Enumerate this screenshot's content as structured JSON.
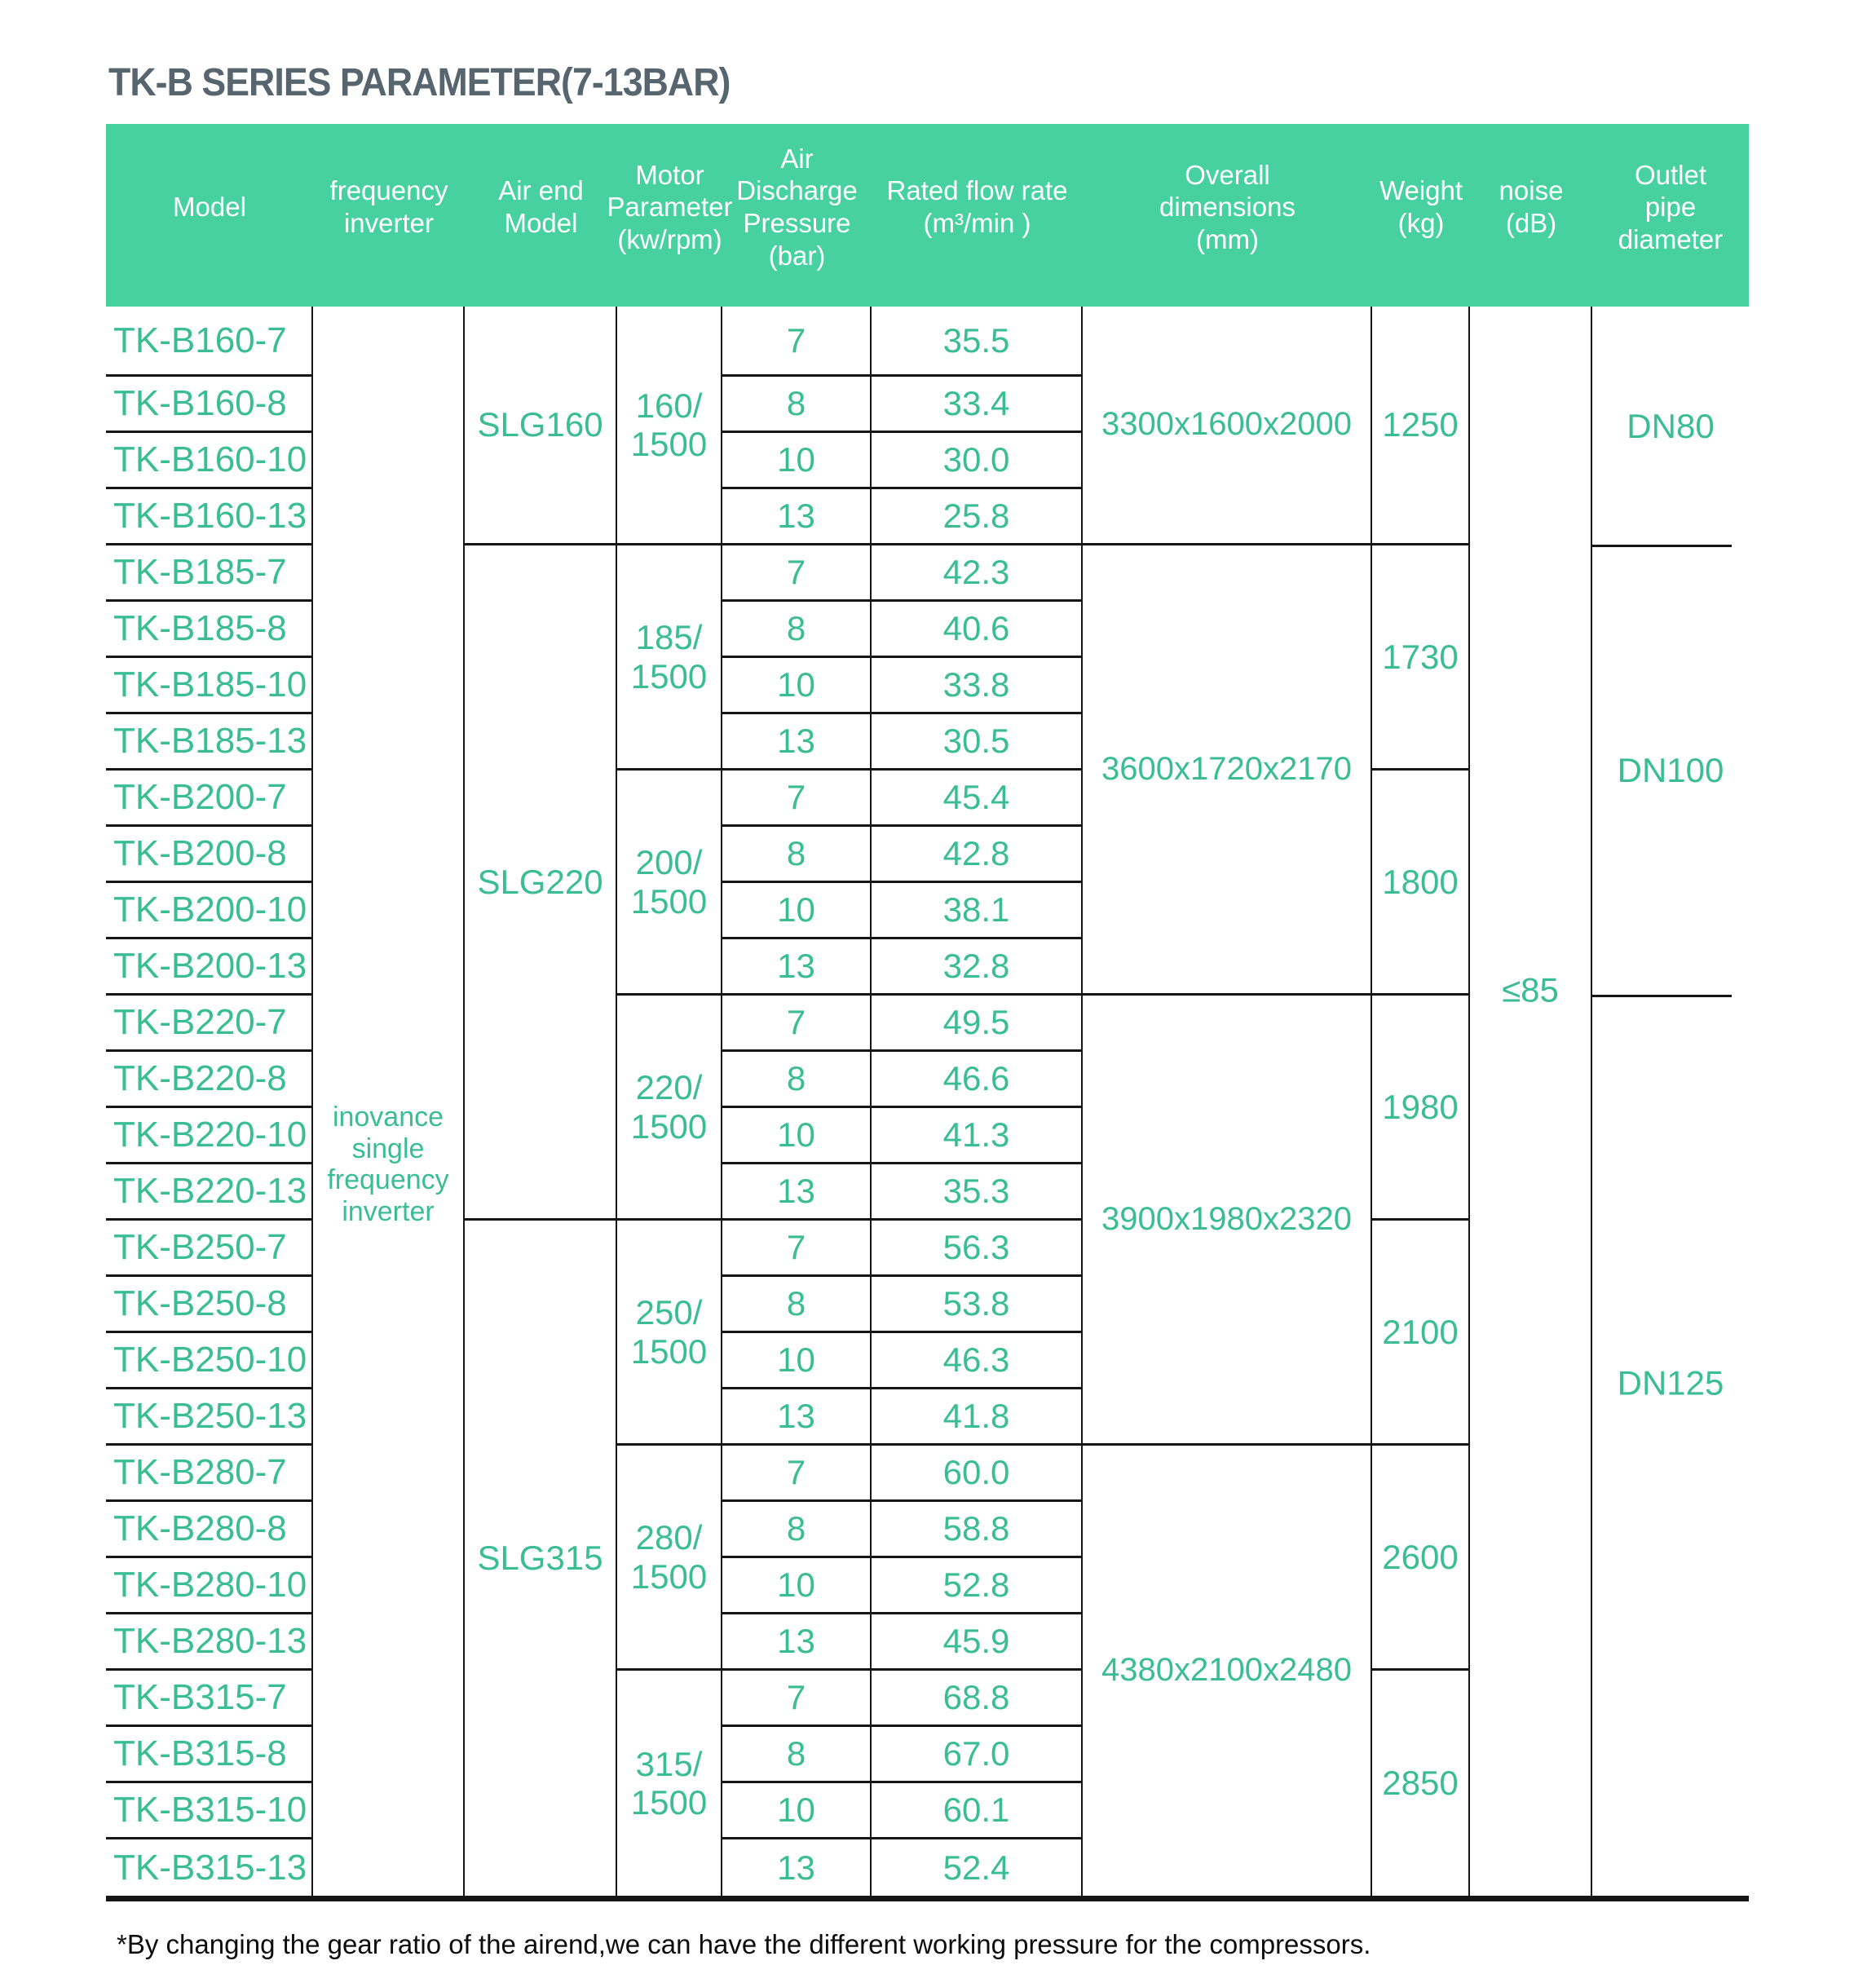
{
  "title": "TK-B SERIES PARAMETER(7-13BAR)",
  "footnote": "*By changing the gear ratio of the airend,we can have the different working pressure for the compressors.",
  "colors": {
    "header_bg": "#47d1a1",
    "header_text": "#ffffff",
    "data_text": "#3bbd94",
    "title_text": "#57656e",
    "border": "#161616",
    "footnote_text": "#0d0d0d"
  },
  "table": {
    "columns": [
      {
        "id": "model",
        "header_lines": [
          "Model"
        ]
      },
      {
        "id": "frequency_inverter",
        "header_lines": [
          "frequency",
          "inverter"
        ]
      },
      {
        "id": "air_end_model",
        "header_lines": [
          "Air end",
          "Model"
        ]
      },
      {
        "id": "motor_parameter",
        "header_lines": [
          "Motor",
          "Parameter",
          "(kw/rpm)"
        ]
      },
      {
        "id": "air_discharge_pressure",
        "header_lines": [
          "Air",
          "Discharge",
          "Pressure",
          "(bar)"
        ]
      },
      {
        "id": "rated_flow_rate",
        "header_lines": [
          "Rated flow rate",
          "(m³/min )"
        ]
      },
      {
        "id": "overall_dimensions",
        "header_lines": [
          "Overall",
          "dimensions",
          "(mm)"
        ]
      },
      {
        "id": "weight",
        "header_lines": [
          "Weight",
          "(kg)"
        ]
      },
      {
        "id": "noise",
        "header_lines": [
          "noise",
          "(dB)"
        ]
      },
      {
        "id": "outlet_pipe_diameter",
        "header_lines": [
          "Outlet",
          "pipe",
          "diameter"
        ]
      }
    ],
    "rows": [
      {
        "model": "TK-B160-7",
        "pressure": "7",
        "flow": "35.5"
      },
      {
        "model": "TK-B160-8",
        "pressure": "8",
        "flow": "33.4"
      },
      {
        "model": "TK-B160-10",
        "pressure": "10",
        "flow": "30.0"
      },
      {
        "model": "TK-B160-13",
        "pressure": "13",
        "flow": "25.8"
      },
      {
        "model": "TK-B185-7",
        "pressure": "7",
        "flow": "42.3"
      },
      {
        "model": "TK-B185-8",
        "pressure": "8",
        "flow": "40.6"
      },
      {
        "model": "TK-B185-10",
        "pressure": "10",
        "flow": "33.8"
      },
      {
        "model": "TK-B185-13",
        "pressure": "13",
        "flow": "30.5"
      },
      {
        "model": "TK-B200-7",
        "pressure": "7",
        "flow": "45.4"
      },
      {
        "model": "TK-B200-8",
        "pressure": "8",
        "flow": "42.8"
      },
      {
        "model": "TK-B200-10",
        "pressure": "10",
        "flow": "38.1"
      },
      {
        "model": "TK-B200-13",
        "pressure": "13",
        "flow": "32.8"
      },
      {
        "model": "TK-B220-7",
        "pressure": "7",
        "flow": "49.5"
      },
      {
        "model": "TK-B220-8",
        "pressure": "8",
        "flow": "46.6"
      },
      {
        "model": "TK-B220-10",
        "pressure": "10",
        "flow": "41.3"
      },
      {
        "model": "TK-B220-13",
        "pressure": "13",
        "flow": "35.3"
      },
      {
        "model": "TK-B250-7",
        "pressure": "7",
        "flow": "56.3"
      },
      {
        "model": "TK-B250-8",
        "pressure": "8",
        "flow": "53.8"
      },
      {
        "model": "TK-B250-10",
        "pressure": "10",
        "flow": "46.3"
      },
      {
        "model": "TK-B250-13",
        "pressure": "13",
        "flow": "41.8"
      },
      {
        "model": "TK-B280-7",
        "pressure": "7",
        "flow": "60.0"
      },
      {
        "model": "TK-B280-8",
        "pressure": "8",
        "flow": "58.8"
      },
      {
        "model": "TK-B280-10",
        "pressure": "10",
        "flow": "52.8"
      },
      {
        "model": "TK-B280-13",
        "pressure": "13",
        "flow": "45.9"
      },
      {
        "model": "TK-B315-7",
        "pressure": "7",
        "flow": "68.8"
      },
      {
        "model": "TK-B315-8",
        "pressure": "8",
        "flow": "67.0"
      },
      {
        "model": "TK-B315-10",
        "pressure": "10",
        "flow": "60.1"
      },
      {
        "model": "TK-B315-13",
        "pressure": "13",
        "flow": "52.4"
      }
    ],
    "merged_cells": {
      "frequency_inverter": [
        {
          "start": 1,
          "span": 28,
          "lines": [
            "inovance",
            "single",
            "frequency",
            "inverter"
          ],
          "offset_pct": 54
        }
      ],
      "air_end_model": [
        {
          "start": 1,
          "span": 4,
          "lines": [
            "SLG160"
          ]
        },
        {
          "start": 5,
          "span": 12,
          "lines": [
            "SLG220"
          ]
        },
        {
          "start": 17,
          "span": 12,
          "lines": [
            "SLG315"
          ]
        }
      ],
      "motor_parameter": [
        {
          "start": 1,
          "span": 4,
          "lines": [
            "160/",
            "1500"
          ]
        },
        {
          "start": 5,
          "span": 4,
          "lines": [
            "185/",
            "1500"
          ]
        },
        {
          "start": 9,
          "span": 4,
          "lines": [
            "200/",
            "1500"
          ]
        },
        {
          "start": 13,
          "span": 4,
          "lines": [
            "220/",
            "1500"
          ]
        },
        {
          "start": 17,
          "span": 4,
          "lines": [
            "250/",
            "1500"
          ]
        },
        {
          "start": 21,
          "span": 4,
          "lines": [
            "280/",
            "1500"
          ]
        },
        {
          "start": 25,
          "span": 4,
          "lines": [
            "315/",
            "1500"
          ]
        }
      ],
      "overall_dimensions": [
        {
          "start": 1,
          "span": 4,
          "lines": [
            "3300x1600x2000"
          ]
        },
        {
          "start": 5,
          "span": 8,
          "lines": [
            "3600x1720x2170"
          ]
        },
        {
          "start": 13,
          "span": 8,
          "lines": [
            "3900x1980x2320"
          ]
        },
        {
          "start": 21,
          "span": 8,
          "lines": [
            "4380x2100x2480"
          ]
        }
      ],
      "weight": [
        {
          "start": 1,
          "span": 4,
          "lines": [
            "1250"
          ]
        },
        {
          "start": 5,
          "span": 4,
          "lines": [
            "1730"
          ]
        },
        {
          "start": 9,
          "span": 4,
          "lines": [
            "1800"
          ]
        },
        {
          "start": 13,
          "span": 4,
          "lines": [
            "1980"
          ]
        },
        {
          "start": 17,
          "span": 4,
          "lines": [
            "2100"
          ]
        },
        {
          "start": 21,
          "span": 4,
          "lines": [
            "2600"
          ]
        },
        {
          "start": 25,
          "span": 4,
          "lines": [
            "2850"
          ]
        }
      ],
      "noise": [
        {
          "start": 1,
          "span": 28,
          "lines": [
            "≤85"
          ],
          "offset_pct": 43
        }
      ],
      "outlet_pipe_diameter": [
        {
          "start": 1,
          "span": 4,
          "lines": [
            "DN80"
          ]
        },
        {
          "start": 5,
          "span": 8,
          "lines": [
            "DN100"
          ]
        },
        {
          "start": 13,
          "span": 16,
          "lines": [
            "DN125"
          ],
          "offset_pct": 43
        }
      ]
    }
  }
}
